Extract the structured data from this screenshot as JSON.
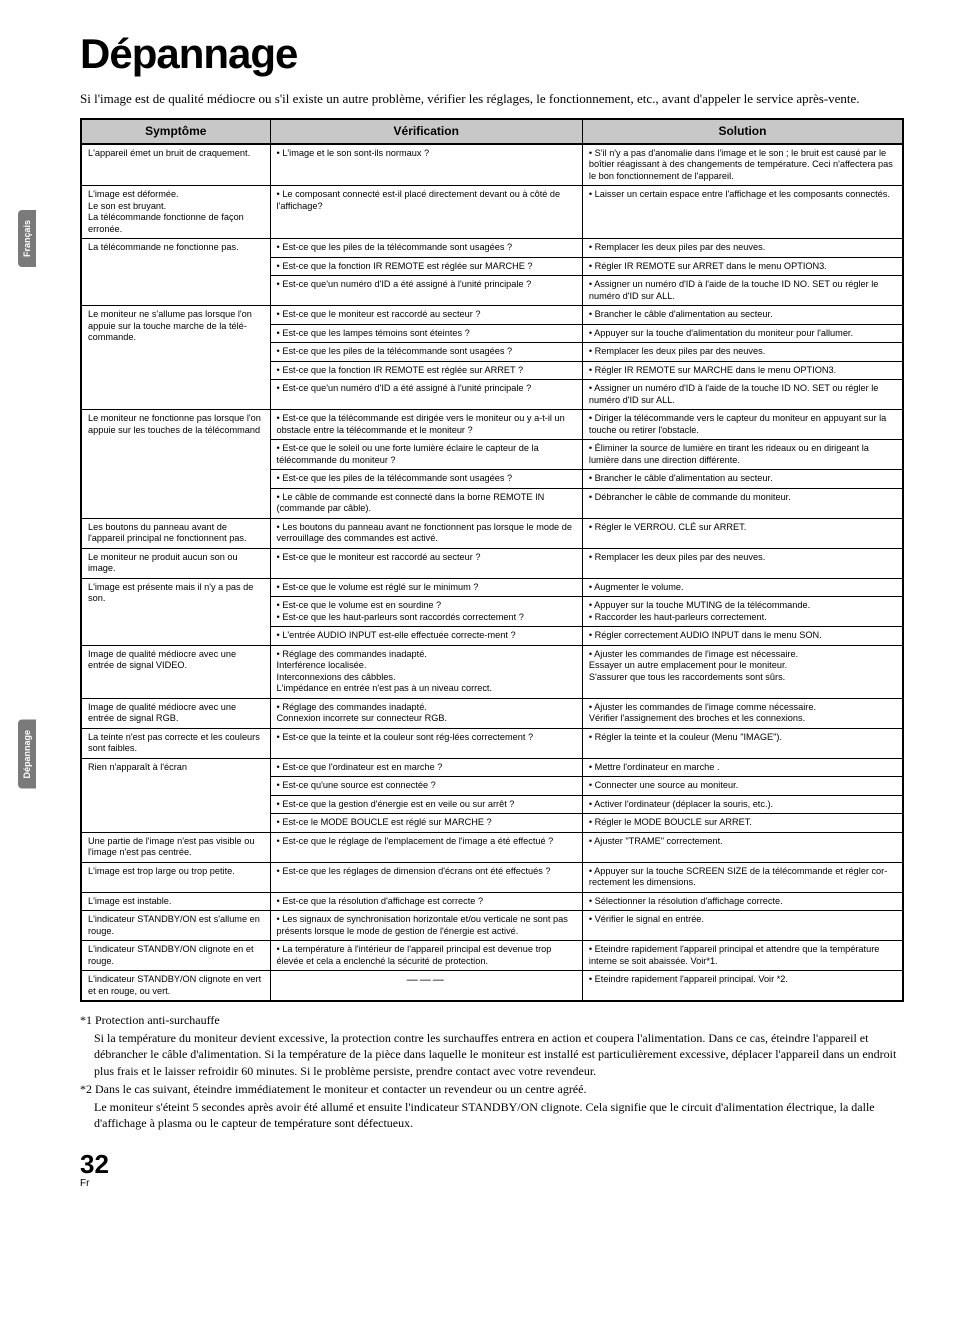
{
  "title": "Dépannage",
  "intro": "Si l'image est de qualité médiocre ou s'il existe un autre problème, vérifier les réglages, le fonctionnement, etc., avant d'appeler le service après-vente.",
  "side_tabs": {
    "tab1": "Français",
    "tab2": "Dépannage"
  },
  "headers": {
    "c1": "Symptôme",
    "c2": "Vérification",
    "c3": "Solution"
  },
  "rows": [
    {
      "sym": "L'appareil émet un bruit de craquement.",
      "sym_rowspan": 1,
      "ver": "• L'image et le son sont-ils normaux ?",
      "sol": "• S'il n'y a pas d'anomalie dans l'image et le son ; le bruit est causé par le boîtier réagissant à des changements de température. Ceci n'affectera pas le bon fonctionnement de l'appareil."
    },
    {
      "sym": "L'image est déformée.\nLe son est bruyant.\nLa télécommande fonctionne de façon erronée.",
      "sym_rowspan": 1,
      "ver": "• Le composant connecté est-il placé directement devant ou à côté de l'affichage?",
      "sol": "• Laisser un certain espace entre l'affichage et les composants connectés."
    },
    {
      "sym": "La télécommande ne fonctionne pas.",
      "sym_rowspan": 3,
      "ver": "• Est-ce que les piles de la télécommande sont usagées ?",
      "sol": "• Remplacer les deux piles par des neuves."
    },
    {
      "ver": "• Est-ce que la fonction IR REMOTE est réglée sur MARCHE ?",
      "sol": "• Régler IR REMOTE sur ARRET dans le menu OPTION3."
    },
    {
      "ver": "• Est-ce que'un numéro d'ID a été assigné à l'unité principale ?",
      "sol": "• Assigner un numéro d'ID à l'aide de la touche ID NO. SET ou régler le numéro d'ID sur ALL."
    },
    {
      "sym": "Le moniteur ne s'allume pas lorsque l'on appuie sur la touche marche de la télé-commande.",
      "sym_rowspan": 5,
      "ver": "• Est-ce que le moniteur est raccordé au secteur ?",
      "sol": "• Brancher le câble d'alimentation au secteur."
    },
    {
      "ver": "• Est-ce que les lampes témoins sont éteintes ?",
      "sol": "• Appuyer sur la touche d'alimentation du moniteur pour l'allumer."
    },
    {
      "ver": "• Est-ce que les piles de la télécommande sont usagées ?",
      "sol": "• Remplacer les deux piles par des neuves."
    },
    {
      "ver": "• Est-ce que la fonction IR REMOTE est réglée sur ARRET ?",
      "sol": "• Régler IR REMOTE sur MARCHE dans le menu OPTION3."
    },
    {
      "ver": "• Est-ce que'un numéro d'ID a été assigné à l'unité principale ?",
      "sol": "• Assigner un numéro d'ID à l'aide de la touche ID NO. SET ou régler le numéro d'ID sur ALL."
    },
    {
      "sym": "Le moniteur ne fonctionne pas lorsque l'on appuie sur les touches de la télécommand",
      "sym_rowspan": 4,
      "ver": "• Est-ce que la télécommande est dirigée vers le moniteur ou y a-t-il un obstacle entre la télécommande et le moniteur ?",
      "sol": "• Diriger la télécommande vers le capteur du moniteur en appuyant sur la touche ou retirer l'obstacle."
    },
    {
      "ver": "• Est-ce que le soleil ou une forte lumière éclaire le capteur de la télécommande du moniteur ?",
      "sol": "• Éliminer la source de lumière en tirant les rideaux ou en dirigeant la lumière dans une direction différente."
    },
    {
      "ver": "• Est-ce que les piles de la télécommande sont usagées ?",
      "sol": "• Brancher le câble d'alimentation au secteur."
    },
    {
      "ver": "• Le câble de commande est connecté dans la borne REMOTE IN (commande par câble).",
      "sol": "• Débrancher le câble de commande du moniteur."
    },
    {
      "sym": "Les boutons du panneau avant de l'appareil principal ne fonctionnent pas.",
      "sym_rowspan": 1,
      "ver": "• Les boutons du panneau avant ne fonctionnent pas lorsque le mode de verrouillage des commandes est activé.",
      "sol": "• Régler le VERROU. CLÉ sur ARRET."
    },
    {
      "sym": "Le moniteur ne produit aucun son ou image.",
      "sym_rowspan": 1,
      "ver": "• Est-ce que le moniteur est raccordé au secteur ?",
      "sol": "• Remplacer les deux piles par des neuves."
    },
    {
      "sym": "L'image est présente mais il n'y a pas de son.",
      "sym_rowspan": 3,
      "ver": "• Est-ce que le volume est réglé sur le minimum ?",
      "sol": "• Augmenter le volume."
    },
    {
      "ver": "• Est-ce que le volume est en sourdine ?\n• Est-ce que les haut-parleurs sont raccordés correctement ?",
      "sol": "• Appuyer sur la touche MUTING de la télécommande.\n• Raccorder les haut-parleurs correctement."
    },
    {
      "ver": "• L'entrée AUDIO INPUT est-elle effectuée correcte-ment ?",
      "sol": "• Régler correctement AUDIO INPUT dans le menu SON."
    },
    {
      "sym": "Image de qualité médiocre avec une entrée de signal VIDEO.",
      "sym_rowspan": 1,
      "ver": "• Réglage des commandes inadapté.\nInterférence localisée.\nInterconnexions des câbbles.\nL'impédance en entrée n'est pas à un niveau correct.",
      "sol": "• Ajuster les commandes de l'image est nécessaire.\nEssayer un autre emplacement pour le moniteur.\nS'assurer que tous les raccordements sont sûrs."
    },
    {
      "sym": "Image de qualité médiocre avec une entrée de signal RGB.",
      "sym_rowspan": 1,
      "ver": "• Réglage des commandes inadapté.\nConnexion incorrete sur connecteur RGB.",
      "sol": "• Ajuster les commandes de l'image comme nécessaire.\nVérifier l'assignement des broches et les connexions."
    },
    {
      "sym": "La teinte n'est pas correcte et les couleurs sont faibles.",
      "sym_rowspan": 1,
      "ver": "• Est-ce que la teinte et la couleur sont rég-lées correctement ?",
      "sol": "• Régler la teinte et la couleur (Menu \"IMAGE\")."
    },
    {
      "sym": "Rien n'apparaît à l'écran",
      "sym_rowspan": 4,
      "ver": "• Est-ce que l'ordinateur est en marche ?",
      "sol": "• Mettre l'ordinateur en marche ."
    },
    {
      "ver": "• Est-ce qu'une source est connectée ?",
      "sol": "• Connecter une source au moniteur."
    },
    {
      "ver": "• Est-ce que la gestion d'énergie est en veile ou sur arrêt ?",
      "sol": "• Activer l'ordinateur (déplacer la souris, etc.)."
    },
    {
      "ver": "• Est-ce le MODE BOUCLE est réglé sur MARCHE ?",
      "sol": "• Régler le MODE BOUCLE sur ARRET."
    },
    {
      "sym": "Une partie de l'image n'est pas visible ou l'image n'est pas centrée.",
      "sym_rowspan": 1,
      "ver": "• Est-ce que le réglage de l'emplacement de l'image a été effectué ?",
      "sol": "• Ajuster \"TRAME\" correctement."
    },
    {
      "sym": "L'image est trop large ou trop petite.",
      "sym_rowspan": 1,
      "ver": "• Est-ce que les réglages de dimension d'écrans ont été effectués ?",
      "sol": "• Appuyer sur la touche SCREEN SIZE de la télécommande et régler cor-rectement les dimensions."
    },
    {
      "sym": "L'image est instable.",
      "sym_rowspan": 1,
      "ver": "• Est-ce que la résolution d'affichage est correcte ?",
      "sol": "• Sélectionner la résolution d'affichage correcte."
    },
    {
      "sym": "L'indicateur STANDBY/ON est s'allume en rouge.",
      "sym_rowspan": 1,
      "ver": "• Les signaux de synchronisation horizontale et/ou verticale ne sont pas présents lorsque le mode de gestion de l'énergie est activé.",
      "sol": "• Vérifier le signal en entrée."
    },
    {
      "sym": "L'indicateur STANDBY/ON clignote en et rouge.",
      "sym_rowspan": 1,
      "ver": "• La température à l'intérieur de l'appareil principal est devenue trop élevée et cela a enclenché la sécurité de protection.",
      "sol": "• Eteindre rapidement l'appareil principal et attendre que la température interne se soit abaissée. Voir*1."
    },
    {
      "sym": "L'indicateur STANDBY/ON clignote en vert et en rouge, ou vert.",
      "sym_rowspan": 1,
      "ver": "———",
      "ver_dash": true,
      "sol": "• Eteindre rapidement l'appareil principal. Voir *2."
    }
  ],
  "notes": {
    "n1_label": "*1 Protection anti-surchauffe",
    "n1_body": "Si la température du moniteur devient excessive, la protection contre les surchauffes entrera en action et coupera l'alimentation. Dans ce cas, éteindre l'appareil et débrancher le câble d'alimentation. Si la température de la pièce dans laquelle le moniteur est installé est particulièrement excessive, déplacer l'appareil dans un endroit plus frais et le laisser refroidir 60 minutes. Si le problème persiste, prendre contact avec votre revendeur.",
    "n2_label": "*2 Dans le cas suivant, éteindre immédiatement le moniteur et contacter un revendeur ou un centre agréé.",
    "n2_body": "Le moniteur s'éteint 5 secondes après avoir été allumé et ensuite l'indicateur STANDBY/ON clignote. Cela signifie que le circuit d'alimentation électrique, la dalle d'affichage à plasma ou le capteur de température sont défectueux."
  },
  "page_number": "32",
  "page_lang": "Fr"
}
